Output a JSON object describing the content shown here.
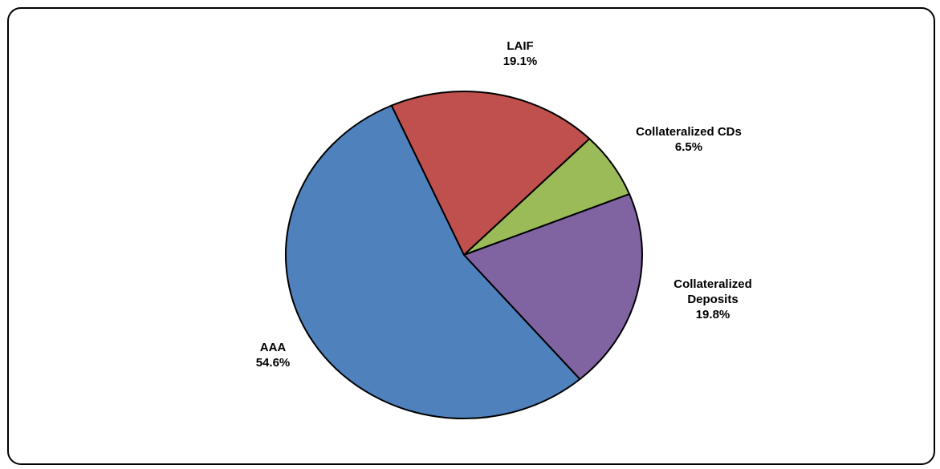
{
  "chart_data": {
    "type": "pie",
    "categories": [
      "LAIF",
      "Collateralized CDs",
      "Collateralized Deposits",
      "AAA"
    ],
    "values": [
      19.1,
      6.5,
      19.8,
      54.6
    ],
    "value_labels": [
      "19.1%",
      "6.5%",
      "19.8%",
      "54.6%"
    ],
    "colors": [
      "#c0504d",
      "#9bbb59",
      "#8064a2",
      "#4f81bd"
    ]
  }
}
